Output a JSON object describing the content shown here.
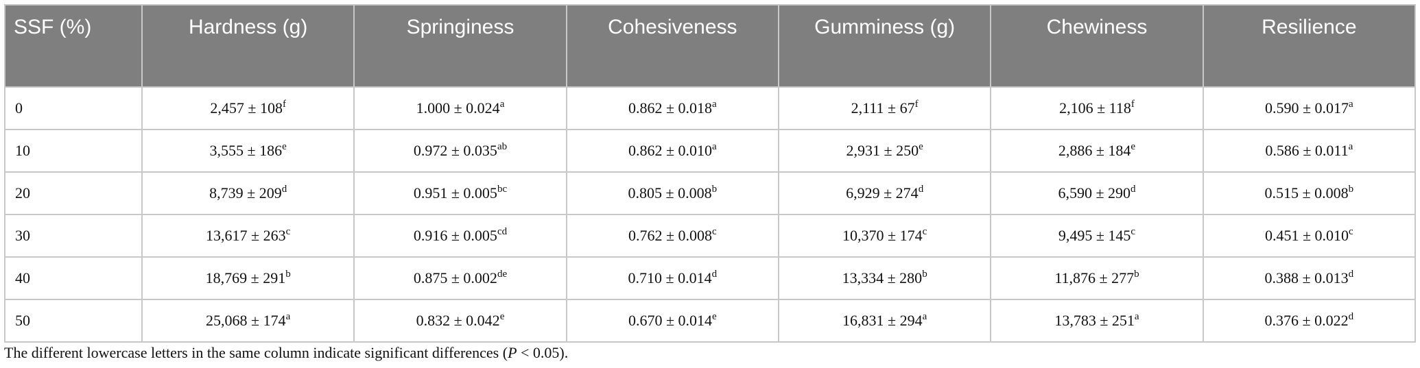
{
  "table": {
    "header": [
      "SSF (%)",
      "Hardness (g)",
      "Springiness",
      "Cohesiveness",
      "Gumminess (g)",
      "Chewiness",
      "Resilience"
    ],
    "rows": [
      [
        "0",
        {
          "text": "2,457 ± 108",
          "sup": "f"
        },
        {
          "text": "1.000 ± 0.024",
          "sup": "a"
        },
        {
          "text": "0.862 ± 0.018",
          "sup": "a"
        },
        {
          "text": "2,111 ± 67",
          "sup": "f"
        },
        {
          "text": "2,106 ± 118",
          "sup": "f"
        },
        {
          "text": "0.590 ± 0.017",
          "sup": "a"
        }
      ],
      [
        "10",
        {
          "text": "3,555 ± 186",
          "sup": "e"
        },
        {
          "text": "0.972 ± 0.035",
          "sup": "ab"
        },
        {
          "text": "0.862 ± 0.010",
          "sup": "a"
        },
        {
          "text": "2,931 ± 250",
          "sup": "e"
        },
        {
          "text": "2,886 ± 184",
          "sup": "e"
        },
        {
          "text": "0.586 ± 0.011",
          "sup": "a"
        }
      ],
      [
        "20",
        {
          "text": "8,739 ± 209",
          "sup": "d"
        },
        {
          "text": "0.951 ± 0.005",
          "sup": "bc"
        },
        {
          "text": "0.805 ± 0.008",
          "sup": "b"
        },
        {
          "text": "6,929 ± 274",
          "sup": "d"
        },
        {
          "text": "6,590 ± 290",
          "sup": "d"
        },
        {
          "text": "0.515 ± 0.008",
          "sup": "b"
        }
      ],
      [
        "30",
        {
          "text": "13,617 ± 263",
          "sup": "c"
        },
        {
          "text": "0.916 ± 0.005",
          "sup": "cd"
        },
        {
          "text": "0.762 ± 0.008",
          "sup": "c"
        },
        {
          "text": "10,370 ± 174",
          "sup": "c"
        },
        {
          "text": "9,495 ± 145",
          "sup": "c"
        },
        {
          "text": "0.451 ± 0.010",
          "sup": "c"
        }
      ],
      [
        "40",
        {
          "text": "18,769 ± 291",
          "sup": "b"
        },
        {
          "text": "0.875 ± 0.002",
          "sup": "de"
        },
        {
          "text": "0.710 ± 0.014",
          "sup": "d"
        },
        {
          "text": "13,334 ± 280",
          "sup": "b"
        },
        {
          "text": "11,876 ± 277",
          "sup": "b"
        },
        {
          "text": "0.388 ± 0.013",
          "sup": "d"
        }
      ],
      [
        "50",
        {
          "text": "25,068 ± 174",
          "sup": "a"
        },
        {
          "text": "0.832 ± 0.042",
          "sup": "e"
        },
        {
          "text": "0.670 ± 0.014",
          "sup": "e"
        },
        {
          "text": "16,831 ± 294",
          "sup": "a"
        },
        {
          "text": "13,783 ± 251",
          "sup": "a"
        },
        {
          "text": "0.376 ± 0.022",
          "sup": "d"
        }
      ]
    ]
  },
  "footnote": {
    "before": "The different lowercase letters in the same column indicate significant differences (",
    "italic": "P",
    "after": " < 0.05)."
  }
}
